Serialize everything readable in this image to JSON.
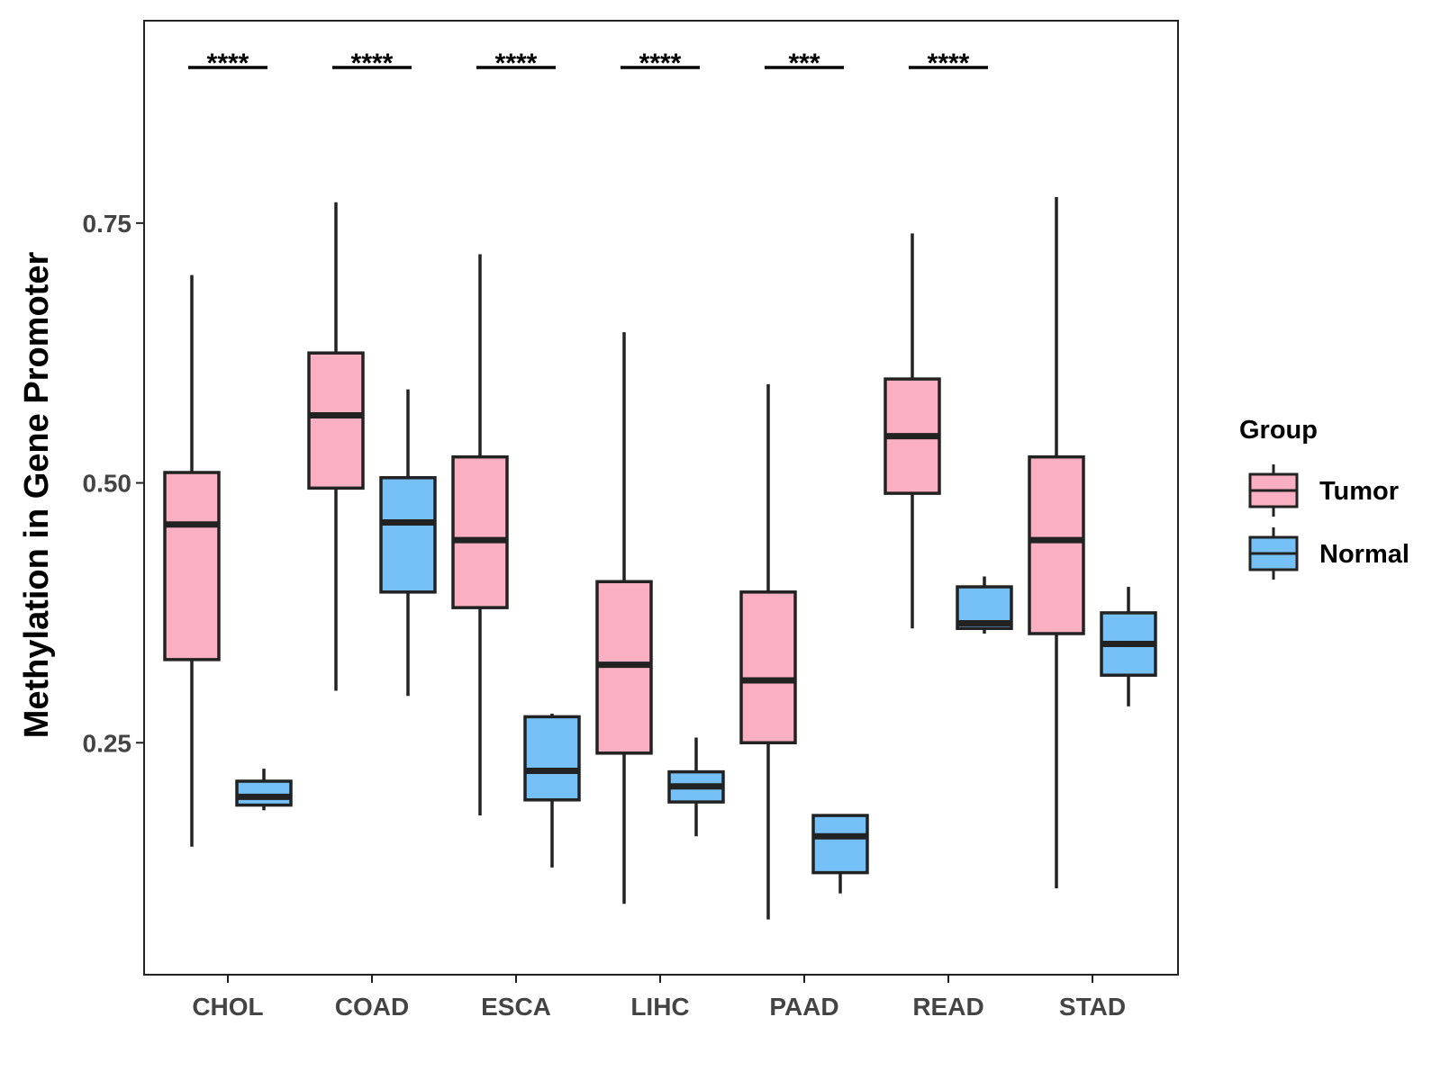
{
  "chart_data": {
    "type": "box",
    "title": "",
    "xlabel": "",
    "ylabel": "Methylation in Gene Promoter",
    "ylim": [
      0.045,
      0.93
    ],
    "yticks": [
      0.25,
      0.5,
      0.75
    ],
    "ytick_labels": [
      "0.25",
      "0.50",
      "0.75"
    ],
    "categories": [
      "CHOL",
      "COAD",
      "ESCA",
      "LIHC",
      "PAAD",
      "READ",
      "STAD"
    ],
    "significance": [
      "****",
      "****",
      "****",
      "****",
      "***",
      "****",
      ""
    ],
    "legend": {
      "title": "Group",
      "position": "right"
    },
    "series": [
      {
        "name": "Tumor",
        "color": "#FAB0C2",
        "boxes": [
          {
            "min": 0.15,
            "q1": 0.33,
            "median": 0.46,
            "q3": 0.51,
            "max": 0.7
          },
          {
            "min": 0.3,
            "q1": 0.495,
            "median": 0.565,
            "q3": 0.625,
            "max": 0.77
          },
          {
            "min": 0.18,
            "q1": 0.38,
            "median": 0.445,
            "q3": 0.525,
            "max": 0.72
          },
          {
            "min": 0.095,
            "q1": 0.24,
            "median": 0.325,
            "q3": 0.405,
            "max": 0.645
          },
          {
            "min": 0.08,
            "q1": 0.25,
            "median": 0.31,
            "q3": 0.395,
            "max": 0.595
          },
          {
            "min": 0.36,
            "q1": 0.49,
            "median": 0.545,
            "q3": 0.6,
            "max": 0.74
          },
          {
            "min": 0.11,
            "q1": 0.355,
            "median": 0.445,
            "q3": 0.525,
            "max": 0.775
          }
        ]
      },
      {
        "name": "Normal",
        "color": "#75C1F7",
        "boxes": [
          {
            "min": 0.185,
            "q1": 0.19,
            "median": 0.198,
            "q3": 0.213,
            "max": 0.225
          },
          {
            "min": 0.295,
            "q1": 0.395,
            "median": 0.462,
            "q3": 0.505,
            "max": 0.59
          },
          {
            "min": 0.13,
            "q1": 0.195,
            "median": 0.223,
            "q3": 0.275,
            "max": 0.278
          },
          {
            "min": 0.16,
            "q1": 0.193,
            "median": 0.208,
            "q3": 0.222,
            "max": 0.255
          },
          {
            "min": 0.105,
            "q1": 0.125,
            "median": 0.16,
            "q3": 0.18,
            "max": 0.18
          },
          {
            "min": 0.355,
            "q1": 0.36,
            "median": 0.365,
            "q3": 0.4,
            "max": 0.41
          },
          {
            "min": 0.285,
            "q1": 0.315,
            "median": 0.345,
            "q3": 0.375,
            "max": 0.4
          }
        ]
      }
    ]
  }
}
